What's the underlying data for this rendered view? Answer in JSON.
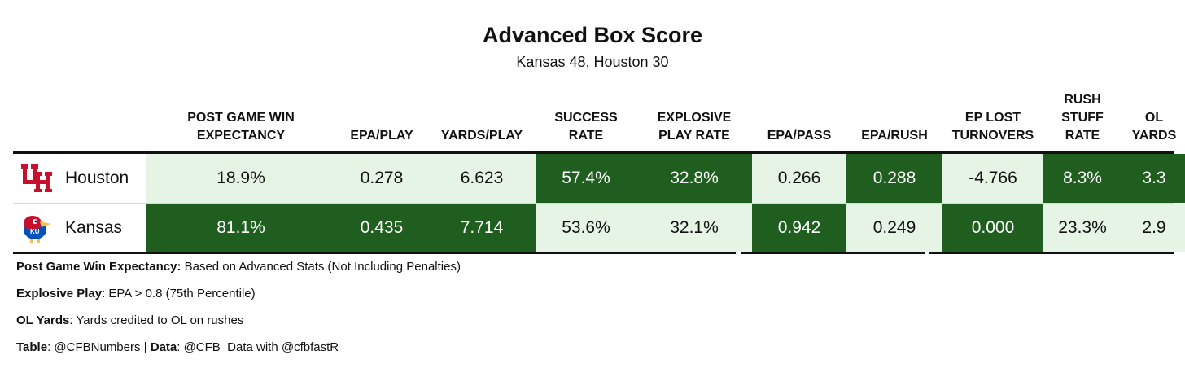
{
  "title": "Advanced Box Score",
  "subtitle": "Kansas 48, Houston 30",
  "headers": [
    [
      "POST GAME WIN",
      "EXPECTANCY"
    ],
    [
      "EPA/PLAY"
    ],
    [
      "YARDS/PLAY"
    ],
    [
      "SUCCESS",
      "RATE"
    ],
    [
      "EXPLOSIVE",
      "PLAY RATE"
    ],
    [
      "EPA/PASS"
    ],
    [
      "EPA/RUSH"
    ],
    [
      "EP LOST",
      "TURNOVERS"
    ],
    [
      "RUSH",
      "STUFF",
      "RATE"
    ],
    [
      "OL",
      "YARDS"
    ]
  ],
  "colors": {
    "better": "#1f5e1f",
    "worse": "#e6f4e6",
    "houston_red": "#c8102e",
    "kansas_blue": "#0051ba"
  },
  "chart_data": {
    "type": "table",
    "title": "Advanced Box Score",
    "subtitle": "Kansas 48, Houston 30",
    "columns": [
      "POST GAME WIN EXPECTANCY",
      "EPA/PLAY",
      "YARDS/PLAY",
      "SUCCESS RATE",
      "EXPLOSIVE PLAY RATE",
      "EPA/PASS",
      "EPA/RUSH",
      "EP LOST TURNOVERS",
      "RUSH STUFF RATE",
      "OL YARDS"
    ],
    "rows": [
      {
        "team": "Houston",
        "logo": "houston-logo",
        "values": [
          "18.9%",
          "0.278",
          "6.623",
          "57.4%",
          "32.8%",
          "0.266",
          "0.288",
          "-4.766",
          "8.3%",
          "3.3"
        ],
        "highlight": [
          "light",
          "light",
          "light",
          "dark",
          "dark",
          "light",
          "dark",
          "light",
          "dark",
          "dark"
        ]
      },
      {
        "team": "Kansas",
        "logo": "kansas-jayhawk-logo",
        "values": [
          "81.1%",
          "0.435",
          "7.714",
          "53.6%",
          "32.1%",
          "0.942",
          "0.249",
          "0.000",
          "23.3%",
          "2.9"
        ],
        "highlight": [
          "dark",
          "dark",
          "dark",
          "light",
          "light",
          "dark",
          "light",
          "dark",
          "light",
          "light"
        ]
      }
    ]
  },
  "notes": [
    {
      "bold": "Post Game Win Expectancy:",
      "text": " Based on Advanced Stats (Not Including Penalties)"
    },
    {
      "bold": "Explosive Play",
      "text": ": EPA > 0.8 (75th Percentile)"
    },
    {
      "bold": "OL Yards",
      "text": ": Yards credited to OL on rushes"
    }
  ],
  "credit": {
    "label1": "Table",
    "value1": ": @CFBNumbers | ",
    "label2": "Data",
    "value2": ": @CFB_Data with @cfbfastR"
  }
}
